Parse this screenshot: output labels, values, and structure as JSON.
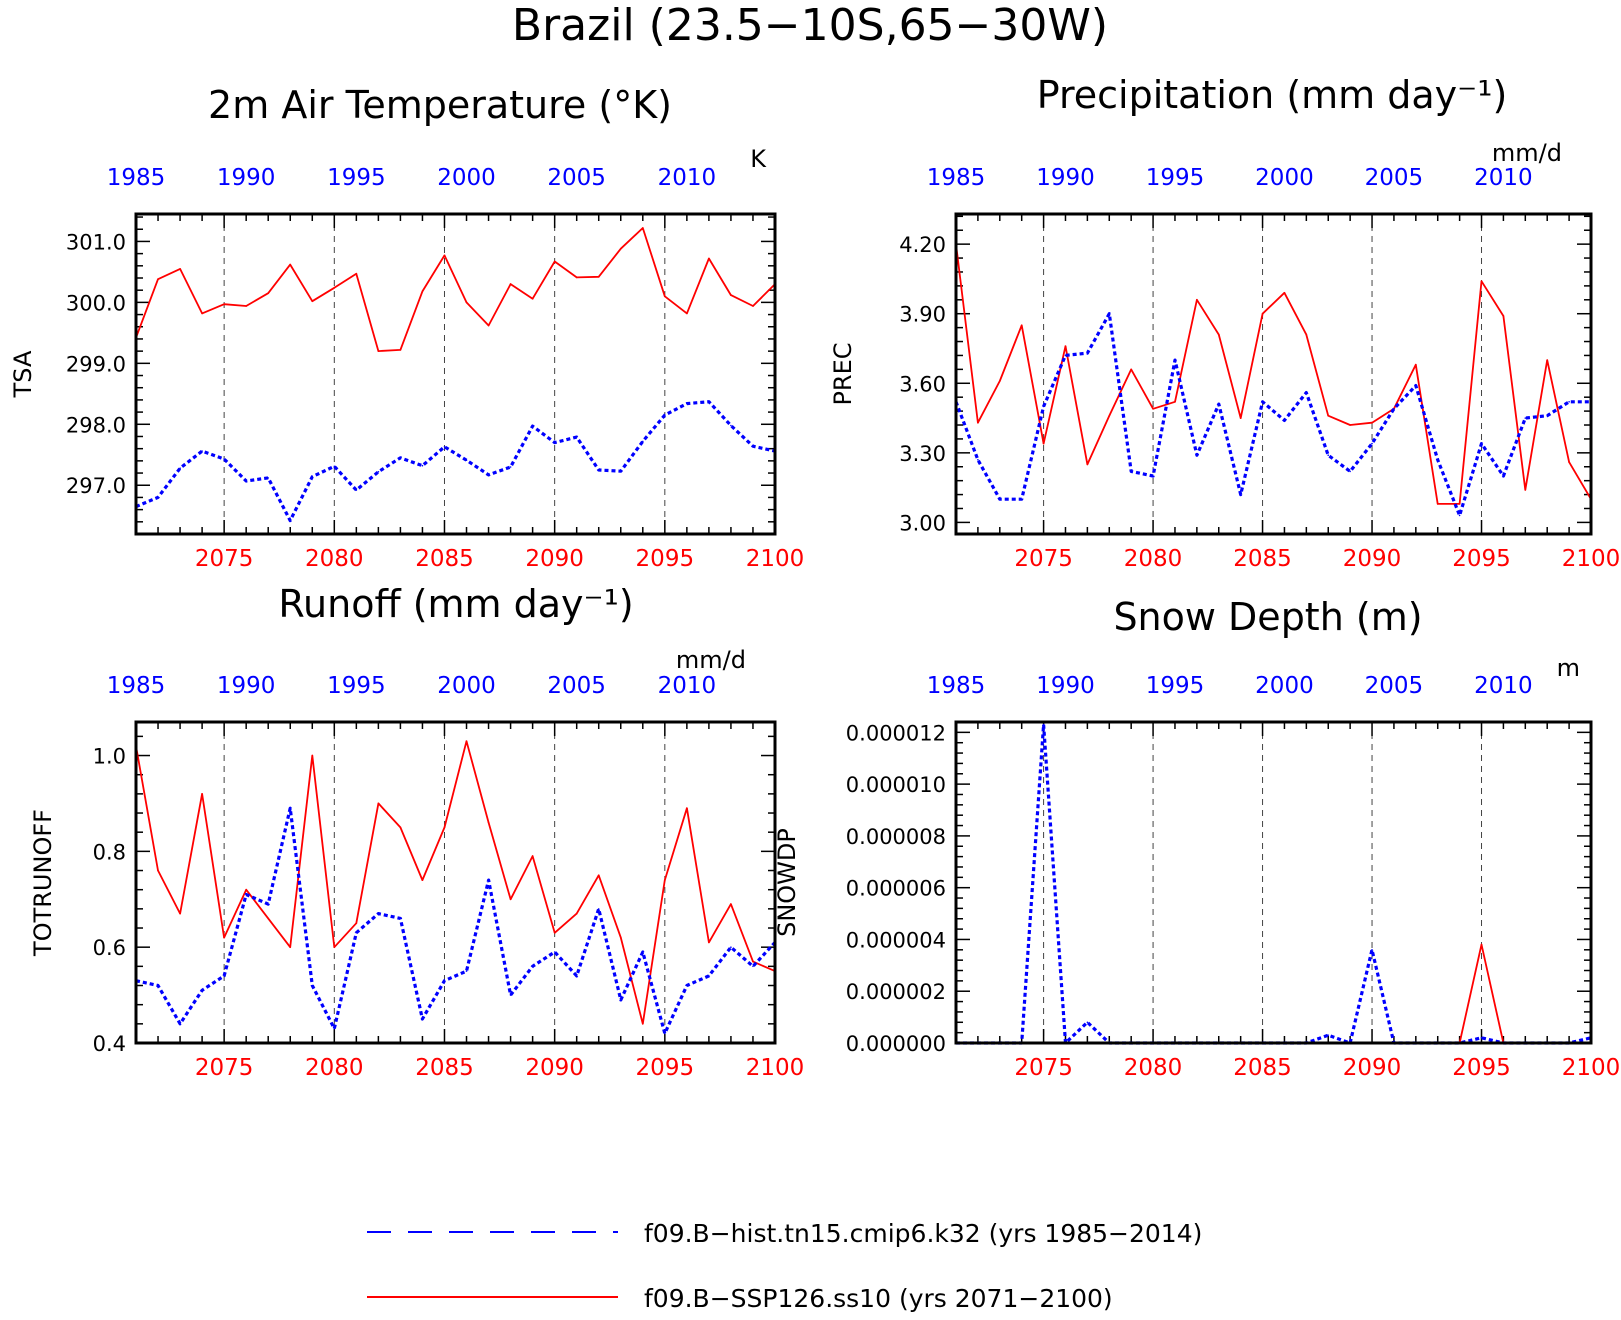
{
  "figure": {
    "title": "Brazil (23.5−10S,65−30W)",
    "legend": [
      {
        "label": "f09.B−hist.tn15.cmip6.k32 (yrs 1985−2014)",
        "color": "#0000ff",
        "style": "dashed"
      },
      {
        "label": "f09.B−SSP126.ss10 (yrs 2071−2100)",
        "color": "#ff0000",
        "style": "solid"
      }
    ]
  },
  "chart_data": [
    {
      "type": "line",
      "title": "2m Air Temperature (°K)",
      "ylabel": "TSA",
      "units": "K",
      "ylim": [
        296.2,
        301.45
      ],
      "yticks": [
        297.0,
        298.0,
        299.0,
        300.0,
        301.0
      ],
      "yticklabels": [
        "297.0",
        "298.0",
        "299.0",
        "300.0",
        "301.0"
      ],
      "xbottom": {
        "ticks": [
          2075,
          2080,
          2085,
          2090,
          2095,
          2100
        ],
        "labels": [
          "2075",
          "2080",
          "2085",
          "2090",
          "2095",
          "2100"
        ]
      },
      "xtop": {
        "ticks": [
          1985,
          1990,
          1995,
          2000,
          2005,
          2010
        ],
        "labels": [
          "1985",
          "1990",
          "1995",
          "2000",
          "2005",
          "2010"
        ]
      },
      "series": [
        {
          "years_from": 2071,
          "color": "#ff0000",
          "style": "solid",
          "values": [
            299.42,
            300.38,
            300.55,
            299.82,
            299.97,
            299.94,
            300.15,
            300.62,
            300.02,
            300.24,
            300.47,
            299.2,
            299.22,
            300.18,
            300.77,
            300.0,
            299.62,
            300.3,
            300.06,
            300.67,
            300.41,
            300.42,
            300.88,
            301.22,
            300.1,
            299.82,
            300.72,
            300.12,
            299.94,
            300.3
          ]
        },
        {
          "years_from": 1985,
          "color": "#0000ff",
          "style": "dashed",
          "values": [
            296.65,
            296.8,
            297.28,
            297.56,
            297.43,
            297.07,
            297.12,
            296.42,
            297.14,
            297.31,
            296.92,
            297.22,
            297.45,
            297.32,
            297.63,
            297.41,
            297.17,
            297.3,
            297.97,
            297.7,
            297.79,
            297.25,
            297.23,
            297.72,
            298.15,
            298.34,
            298.37,
            297.98,
            297.64,
            297.56
          ]
        }
      ]
    },
    {
      "type": "line",
      "title": "Precipitation (mm day⁻¹)",
      "ylabel": "PREC",
      "units": "mm/d",
      "ylim": [
        2.95,
        4.33
      ],
      "yticks": [
        3.0,
        3.3,
        3.6,
        3.9,
        4.2
      ],
      "yticklabels": [
        "3.00",
        "3.30",
        "3.60",
        "3.90",
        "4.20"
      ],
      "xbottom": {
        "ticks": [
          2075,
          2080,
          2085,
          2090,
          2095,
          2100
        ],
        "labels": [
          "2075",
          "2080",
          "2085",
          "2090",
          "2095",
          "2100"
        ]
      },
      "xtop": {
        "ticks": [
          1985,
          1990,
          1995,
          2000,
          2005,
          2010
        ],
        "labels": [
          "1985",
          "1990",
          "1995",
          "2000",
          "2005",
          "2010"
        ]
      },
      "series": [
        {
          "years_from": 2071,
          "color": "#ff0000",
          "style": "solid",
          "values": [
            4.2,
            3.43,
            3.61,
            3.85,
            3.34,
            3.76,
            3.25,
            3.46,
            3.66,
            3.49,
            3.52,
            3.96,
            3.81,
            3.45,
            3.9,
            3.99,
            3.81,
            3.46,
            3.42,
            3.43,
            3.49,
            3.68,
            3.08,
            3.08,
            4.04,
            3.89,
            3.14,
            3.7,
            3.26,
            3.1
          ]
        },
        {
          "years_from": 1985,
          "color": "#0000ff",
          "style": "dashed",
          "values": [
            3.52,
            3.27,
            3.1,
            3.1,
            3.5,
            3.72,
            3.73,
            3.9,
            3.22,
            3.2,
            3.7,
            3.29,
            3.51,
            3.12,
            3.52,
            3.44,
            3.56,
            3.29,
            3.22,
            3.34,
            3.49,
            3.59,
            3.27,
            3.03,
            3.34,
            3.2,
            3.45,
            3.46,
            3.52,
            3.52
          ]
        }
      ]
    },
    {
      "type": "line",
      "title": "Runoff (mm day⁻¹)",
      "ylabel": "TOTRUNOFF",
      "units": "mm/d",
      "ylim": [
        0.4,
        1.07
      ],
      "yticks": [
        0.4,
        0.6,
        0.8,
        1.0
      ],
      "yticklabels": [
        "0.4",
        "0.6",
        "0.8",
        "1.0"
      ],
      "xbottom": {
        "ticks": [
          2075,
          2080,
          2085,
          2090,
          2095,
          2100
        ],
        "labels": [
          "2075",
          "2080",
          "2085",
          "2090",
          "2095",
          "2100"
        ]
      },
      "xtop": {
        "ticks": [
          1985,
          1990,
          1995,
          2000,
          2005,
          2010
        ],
        "labels": [
          "1985",
          "1990",
          "1995",
          "2000",
          "2005",
          "2010"
        ]
      },
      "series": [
        {
          "years_from": 2071,
          "color": "#ff0000",
          "style": "solid",
          "values": [
            1.02,
            0.76,
            0.67,
            0.92,
            0.62,
            0.72,
            0.66,
            0.6,
            1.0,
            0.6,
            0.65,
            0.9,
            0.85,
            0.74,
            0.85,
            1.03,
            0.86,
            0.7,
            0.79,
            0.63,
            0.67,
            0.75,
            0.62,
            0.44,
            0.74,
            0.89,
            0.61,
            0.69,
            0.57,
            0.55
          ]
        },
        {
          "years_from": 1985,
          "color": "#0000ff",
          "style": "dashed",
          "values": [
            0.53,
            0.52,
            0.44,
            0.51,
            0.54,
            0.71,
            0.69,
            0.89,
            0.52,
            0.43,
            0.63,
            0.67,
            0.66,
            0.45,
            0.53,
            0.55,
            0.74,
            0.5,
            0.56,
            0.59,
            0.54,
            0.68,
            0.49,
            0.59,
            0.42,
            0.52,
            0.54,
            0.6,
            0.56,
            0.61
          ]
        }
      ]
    },
    {
      "type": "line",
      "title": "Snow Depth (m)",
      "ylabel": "SNOWDP",
      "units": "m",
      "ylim": [
        0.0,
        1.24e-05
      ],
      "yticks": [
        0.0,
        2e-06,
        4e-06,
        6e-06,
        8e-06,
        1e-05,
        1.2e-05
      ],
      "yticklabels": [
        "0.000000",
        "0.000002",
        "0.000004",
        "0.000006",
        "0.000008",
        "0.000010",
        "0.000012"
      ],
      "xbottom": {
        "ticks": [
          2075,
          2080,
          2085,
          2090,
          2095,
          2100
        ],
        "labels": [
          "2075",
          "2080",
          "2085",
          "2090",
          "2095",
          "2100"
        ]
      },
      "xtop": {
        "ticks": [
          1985,
          1990,
          1995,
          2000,
          2005,
          2010
        ],
        "labels": [
          "1985",
          "1990",
          "1995",
          "2000",
          "2005",
          "2010"
        ]
      },
      "series": [
        {
          "years_from": 2071,
          "color": "#ff0000",
          "style": "solid",
          "values": [
            0,
            0,
            0,
            0,
            0,
            0,
            0,
            0,
            0,
            0,
            0,
            0,
            0,
            0,
            0,
            0,
            0,
            0,
            0,
            0,
            0,
            0,
            0,
            0,
            3.8e-06,
            0,
            0,
            0,
            0,
            0
          ]
        },
        {
          "years_from": 1985,
          "color": "#0000ff",
          "style": "dashed",
          "values": [
            0,
            0,
            0,
            0,
            1.23e-05,
            0,
            8e-07,
            0,
            0,
            0,
            0,
            0,
            0,
            0,
            0,
            0,
            0,
            3e-07,
            0,
            3.6e-06,
            0,
            0,
            0,
            0,
            2e-07,
            0,
            0,
            0,
            0,
            2e-07
          ]
        }
      ]
    }
  ]
}
